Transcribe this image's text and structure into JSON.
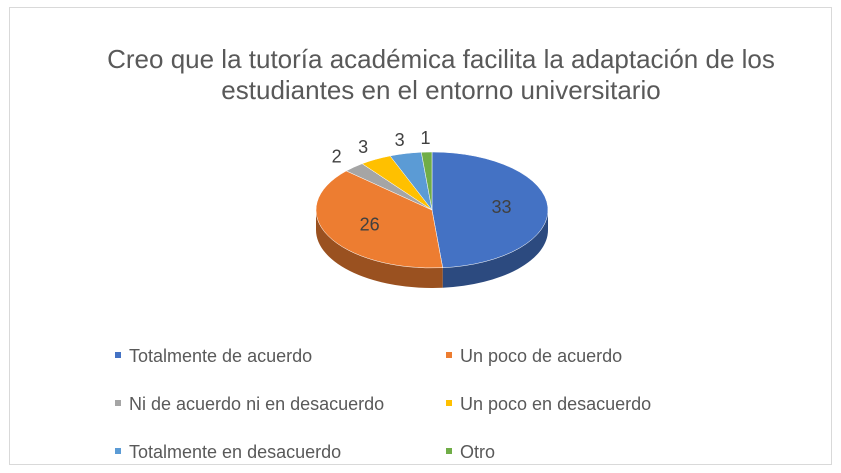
{
  "chart_data": {
    "type": "pie",
    "title": "Creo que la tutoría académica facilita la adaptación de los estudiantes en el entorno universitario",
    "categories": [
      "Totalmente de acuerdo",
      "Un poco de acuerdo",
      "Ni de acuerdo ni en desacuerdo",
      "Un poco en desacuerdo",
      "Totalmente en desacuerdo",
      "Otro"
    ],
    "values": [
      33,
      26,
      2,
      3,
      3,
      1
    ],
    "colors": [
      "#4472c4",
      "#ed7d31",
      "#a5a5a5",
      "#ffc000",
      "#5b9bd5",
      "#70ad47"
    ],
    "legend": "bottom"
  }
}
